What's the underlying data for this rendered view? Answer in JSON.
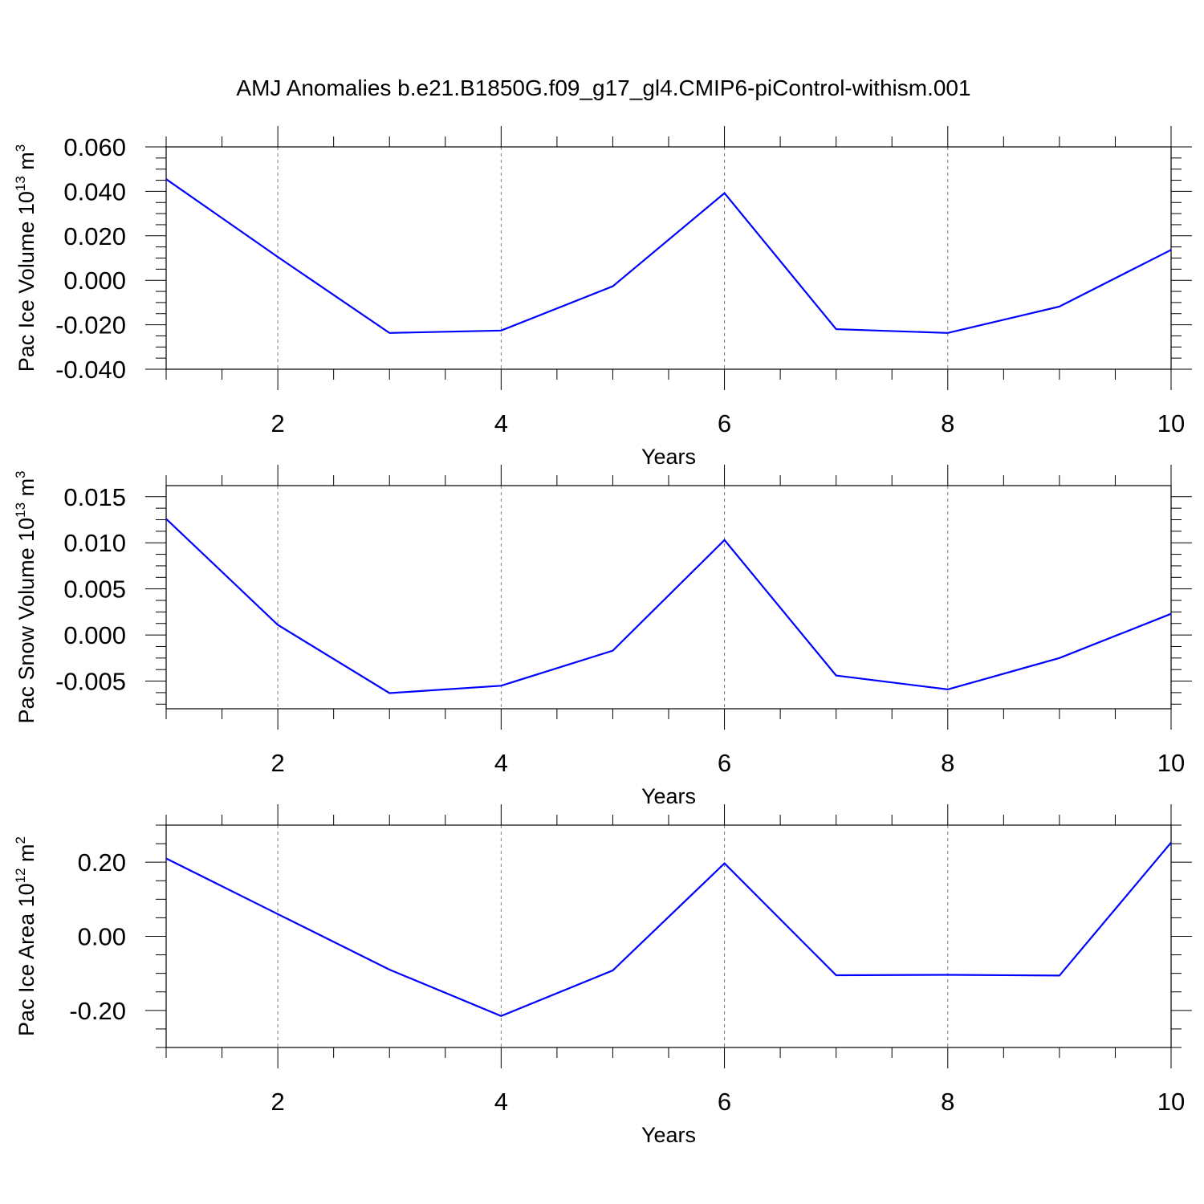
{
  "title": "AMJ Anomalies b.e21.B1850G.f09_g17_gl4.CMIP6-piControl-withism.001",
  "chart_data": [
    {
      "type": "line",
      "title": "AMJ Anomalies b.e21.B1850G.f09_g17_gl4.CMIP6-piControl-withism.001",
      "xlabel": "Years",
      "ylabel": {
        "main": "Pac Ice Volume 10",
        "exp": "13",
        "unit": " m",
        "unit_exp": "3"
      },
      "xlim": [
        1,
        10
      ],
      "ylim": [
        -0.04,
        0.06
      ],
      "xticks": [
        2,
        4,
        6,
        8,
        10
      ],
      "yticks": [
        -0.04,
        -0.02,
        0.0,
        0.02,
        0.04,
        0.06
      ],
      "ytick_labels": [
        "-0.040",
        "-0.020",
        "0.000",
        "0.020",
        "0.040",
        "0.060"
      ],
      "grid": "dashed vertical at major x ticks",
      "line_color": "#0000ff",
      "x": [
        1,
        2,
        3,
        4,
        5,
        6,
        7,
        8,
        9,
        10
      ],
      "values": [
        0.0455,
        0.0105,
        -0.0237,
        -0.0226,
        -0.0027,
        0.0392,
        -0.022,
        -0.0237,
        -0.0118,
        0.0137
      ]
    },
    {
      "type": "line",
      "xlabel": "Years",
      "ylabel": {
        "main": "Pac Snow Volume 10",
        "exp": "13",
        "unit": " m",
        "unit_exp": "3"
      },
      "xlim": [
        1,
        10
      ],
      "ylim": [
        -0.008,
        0.0162
      ],
      "xticks": [
        2,
        4,
        6,
        8,
        10
      ],
      "yticks": [
        -0.005,
        0.0,
        0.005,
        0.01,
        0.015
      ],
      "ytick_labels": [
        "-0.005",
        "0.000",
        "0.005",
        "0.010",
        "0.015"
      ],
      "grid": "dashed vertical at major x ticks",
      "line_color": "#0000ff",
      "x": [
        1,
        2,
        3,
        4,
        5,
        6,
        7,
        8,
        9,
        10
      ],
      "values": [
        0.0126,
        0.0011,
        -0.0063,
        -0.0055,
        -0.0017,
        0.0103,
        -0.0044,
        -0.0059,
        -0.0025,
        0.0023
      ]
    },
    {
      "type": "line",
      "xlabel": "Years",
      "ylabel": {
        "main": "Pac Ice Area 10",
        "exp": "12",
        "unit": " m",
        "unit_exp": "2"
      },
      "xlim": [
        1,
        10
      ],
      "ylim": [
        -0.3,
        0.3
      ],
      "xticks": [
        2,
        4,
        6,
        8,
        10
      ],
      "yticks": [
        -0.2,
        0.0,
        0.2
      ],
      "ytick_labels": [
        "-0.20",
        "0.00",
        "0.20"
      ],
      "grid": "dashed vertical at major x ticks",
      "line_color": "#0000ff",
      "x": [
        1,
        2,
        3,
        4,
        5,
        6,
        7,
        8,
        9,
        10
      ],
      "values": [
        0.21,
        0.06,
        -0.09,
        -0.215,
        -0.092,
        0.197,
        -0.105,
        -0.104,
        -0.106,
        0.253
      ]
    }
  ]
}
